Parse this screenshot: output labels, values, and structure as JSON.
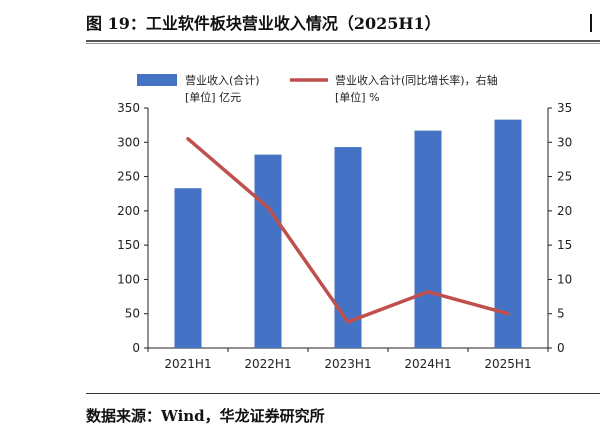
{
  "page": {
    "figure_title": "图 19：工业软件板块营业收入情况（2025H1）",
    "source": "数据来源：Wind，华龙证券研究所"
  },
  "chart_data": {
    "type": "bar",
    "categories": [
      "2021H1",
      "2022H1",
      "2023H1",
      "2024H1",
      "2025H1"
    ],
    "series": [
      {
        "name": "营业收入(合计)",
        "legend_line1": "营业收入(合计)",
        "legend_line2": "[单位] 亿元",
        "type": "bar",
        "axis": "left",
        "color": "#4472C4",
        "values": [
          233,
          282,
          293,
          317,
          333
        ]
      },
      {
        "name": "营业收入合计(同比增长率)，右轴",
        "legend_line1": "营业收入合计(同比增长率)，右轴",
        "legend_line2": "[单位] %",
        "type": "line",
        "axis": "right",
        "color": "#C0504D",
        "values": [
          30.5,
          20.5,
          3.8,
          8.2,
          5.0
        ]
      }
    ],
    "y_left": {
      "min": 0,
      "max": 350,
      "ticks": [
        0,
        50,
        100,
        150,
        200,
        250,
        300,
        350
      ]
    },
    "y_right": {
      "min": 0,
      "max": 35,
      "ticks": [
        0,
        5,
        10,
        15,
        20,
        25,
        30,
        35
      ]
    },
    "grid": false,
    "legend_position": "top"
  }
}
